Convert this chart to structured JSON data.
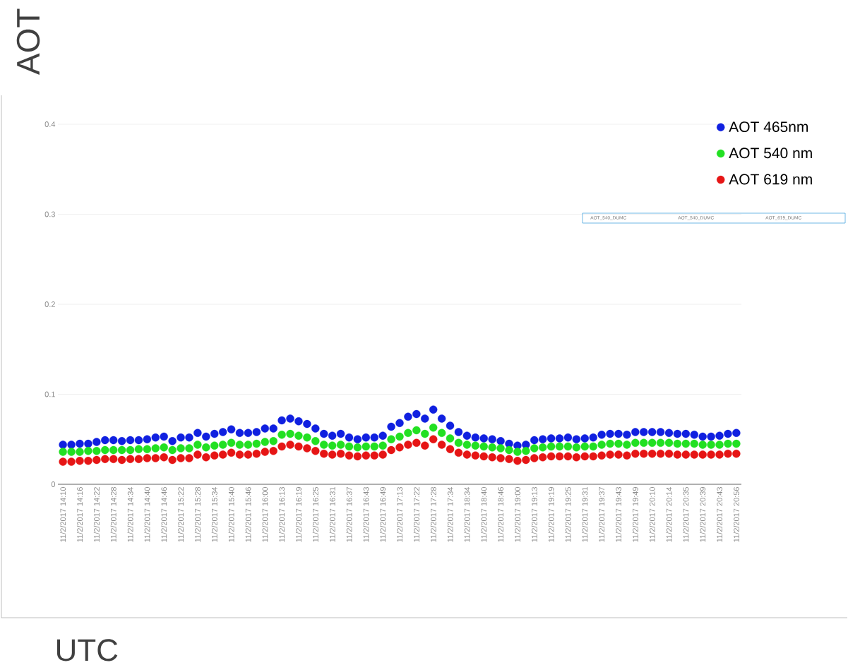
{
  "chart_data": {
    "type": "scatter",
    "xlabel": "UTC",
    "ylabel": "AOT",
    "categories": [
      "11/2/2017 14:10",
      null,
      "11/2/2017 14:16",
      null,
      "11/2/2017 14:22",
      null,
      "11/2/2017 14:28",
      null,
      "11/2/2017 14:34",
      null,
      "11/2/2017 14:40",
      null,
      "11/2/2017 14:46",
      null,
      "11/2/2017 15:22",
      null,
      "11/2/2017 15:28",
      null,
      "11/2/2017 15:34",
      null,
      "11/2/2017 15:40",
      null,
      "11/2/2017 15:46",
      null,
      "11/2/2017 16:00",
      null,
      "11/2/2017 16:13",
      null,
      "11/2/2017 16:19",
      null,
      "11/2/2017 16:25",
      null,
      "11/2/2017 16:31",
      null,
      "11/2/2017 16:37",
      null,
      "11/2/2017 16:43",
      null,
      "11/2/2017 16:49",
      null,
      "11/2/2017 17:13",
      null,
      "11/2/2017 17:22",
      null,
      "11/2/2017 17:28",
      null,
      "11/2/2017 17:34",
      null,
      "11/2/2017 18:34",
      null,
      "11/2/2017 18:40",
      null,
      "11/2/2017 18:46",
      null,
      "11/2/2017 19:00",
      null,
      "11/2/2017 19:13",
      null,
      "11/2/2017 19:19",
      null,
      "11/2/2017 19:25",
      null,
      "11/2/2017 19:31",
      null,
      "11/2/2017 19:37",
      null,
      "11/2/2017 19:43",
      null,
      "11/2/2017 19:49",
      null,
      "11/2/2017 20:10",
      null,
      "11/2/2017 20:14",
      null,
      "11/2/2017 20:35",
      null,
      "11/2/2017 20:39",
      null,
      "11/2/2017 20:43",
      null,
      "11/2/2017 20:56"
    ],
    "series": [
      {
        "name": "AOT 465nm",
        "color": "#1020e0",
        "values": [
          0.044,
          0.044,
          0.045,
          0.045,
          0.047,
          0.049,
          0.049,
          0.048,
          0.049,
          0.049,
          0.05,
          0.052,
          0.053,
          0.048,
          0.052,
          0.052,
          0.057,
          0.053,
          0.056,
          0.058,
          0.061,
          0.057,
          0.057,
          0.058,
          0.062,
          0.062,
          0.071,
          0.073,
          0.07,
          0.067,
          0.062,
          0.056,
          0.054,
          0.056,
          0.052,
          0.05,
          0.052,
          0.052,
          0.054,
          0.064,
          0.068,
          0.075,
          0.078,
          0.073,
          0.083,
          0.073,
          0.065,
          0.058,
          0.054,
          0.052,
          0.051,
          0.05,
          0.048,
          0.045,
          0.043,
          0.044,
          0.049,
          0.05,
          0.051,
          0.051,
          0.052,
          0.05,
          0.051,
          0.052,
          0.055,
          0.056,
          0.056,
          0.055,
          0.058,
          0.058,
          0.058,
          0.058,
          0.057,
          0.056,
          0.056,
          0.055,
          0.053,
          0.053,
          0.054,
          0.056,
          0.057
        ]
      },
      {
        "name": "AOT 540 nm",
        "color": "#22e022",
        "values": [
          0.036,
          0.036,
          0.036,
          0.037,
          0.037,
          0.038,
          0.038,
          0.038,
          0.038,
          0.039,
          0.039,
          0.04,
          0.041,
          0.038,
          0.04,
          0.04,
          0.044,
          0.041,
          0.043,
          0.044,
          0.046,
          0.044,
          0.044,
          0.045,
          0.047,
          0.048,
          0.055,
          0.056,
          0.054,
          0.052,
          0.048,
          0.044,
          0.043,
          0.044,
          0.042,
          0.041,
          0.042,
          0.042,
          0.043,
          0.05,
          0.053,
          0.057,
          0.06,
          0.056,
          0.063,
          0.057,
          0.051,
          0.046,
          0.044,
          0.043,
          0.042,
          0.041,
          0.04,
          0.038,
          0.036,
          0.037,
          0.04,
          0.041,
          0.042,
          0.042,
          0.042,
          0.041,
          0.042,
          0.042,
          0.044,
          0.045,
          0.045,
          0.044,
          0.046,
          0.046,
          0.046,
          0.046,
          0.046,
          0.045,
          0.045,
          0.045,
          0.044,
          0.044,
          0.044,
          0.045,
          0.045
        ]
      },
      {
        "name": "AOT 619 nm",
        "color": "#e61515",
        "values": [
          0.025,
          0.025,
          0.026,
          0.026,
          0.027,
          0.028,
          0.028,
          0.027,
          0.028,
          0.028,
          0.029,
          0.029,
          0.03,
          0.027,
          0.029,
          0.029,
          0.033,
          0.03,
          0.032,
          0.033,
          0.035,
          0.033,
          0.033,
          0.034,
          0.036,
          0.037,
          0.042,
          0.044,
          0.042,
          0.04,
          0.037,
          0.034,
          0.033,
          0.034,
          0.032,
          0.031,
          0.032,
          0.032,
          0.033,
          0.038,
          0.041,
          0.044,
          0.046,
          0.043,
          0.05,
          0.044,
          0.039,
          0.035,
          0.033,
          0.032,
          0.031,
          0.03,
          0.029,
          0.028,
          0.026,
          0.027,
          0.029,
          0.03,
          0.031,
          0.031,
          0.031,
          0.03,
          0.031,
          0.031,
          0.032,
          0.033,
          0.033,
          0.032,
          0.034,
          0.034,
          0.034,
          0.034,
          0.034,
          0.033,
          0.033,
          0.033,
          0.033,
          0.033,
          0.033,
          0.034,
          0.034
        ]
      }
    ],
    "ylim": [
      0,
      0.4
    ],
    "yticks": [
      0,
      0.1,
      0.2,
      0.3,
      0.4
    ],
    "grid": "y",
    "legend": "top right",
    "marker": "circle",
    "annotations": [
      "AOT_540_DUMC",
      "AOT_540_DUMC",
      "AOT_619_DUMC"
    ]
  }
}
